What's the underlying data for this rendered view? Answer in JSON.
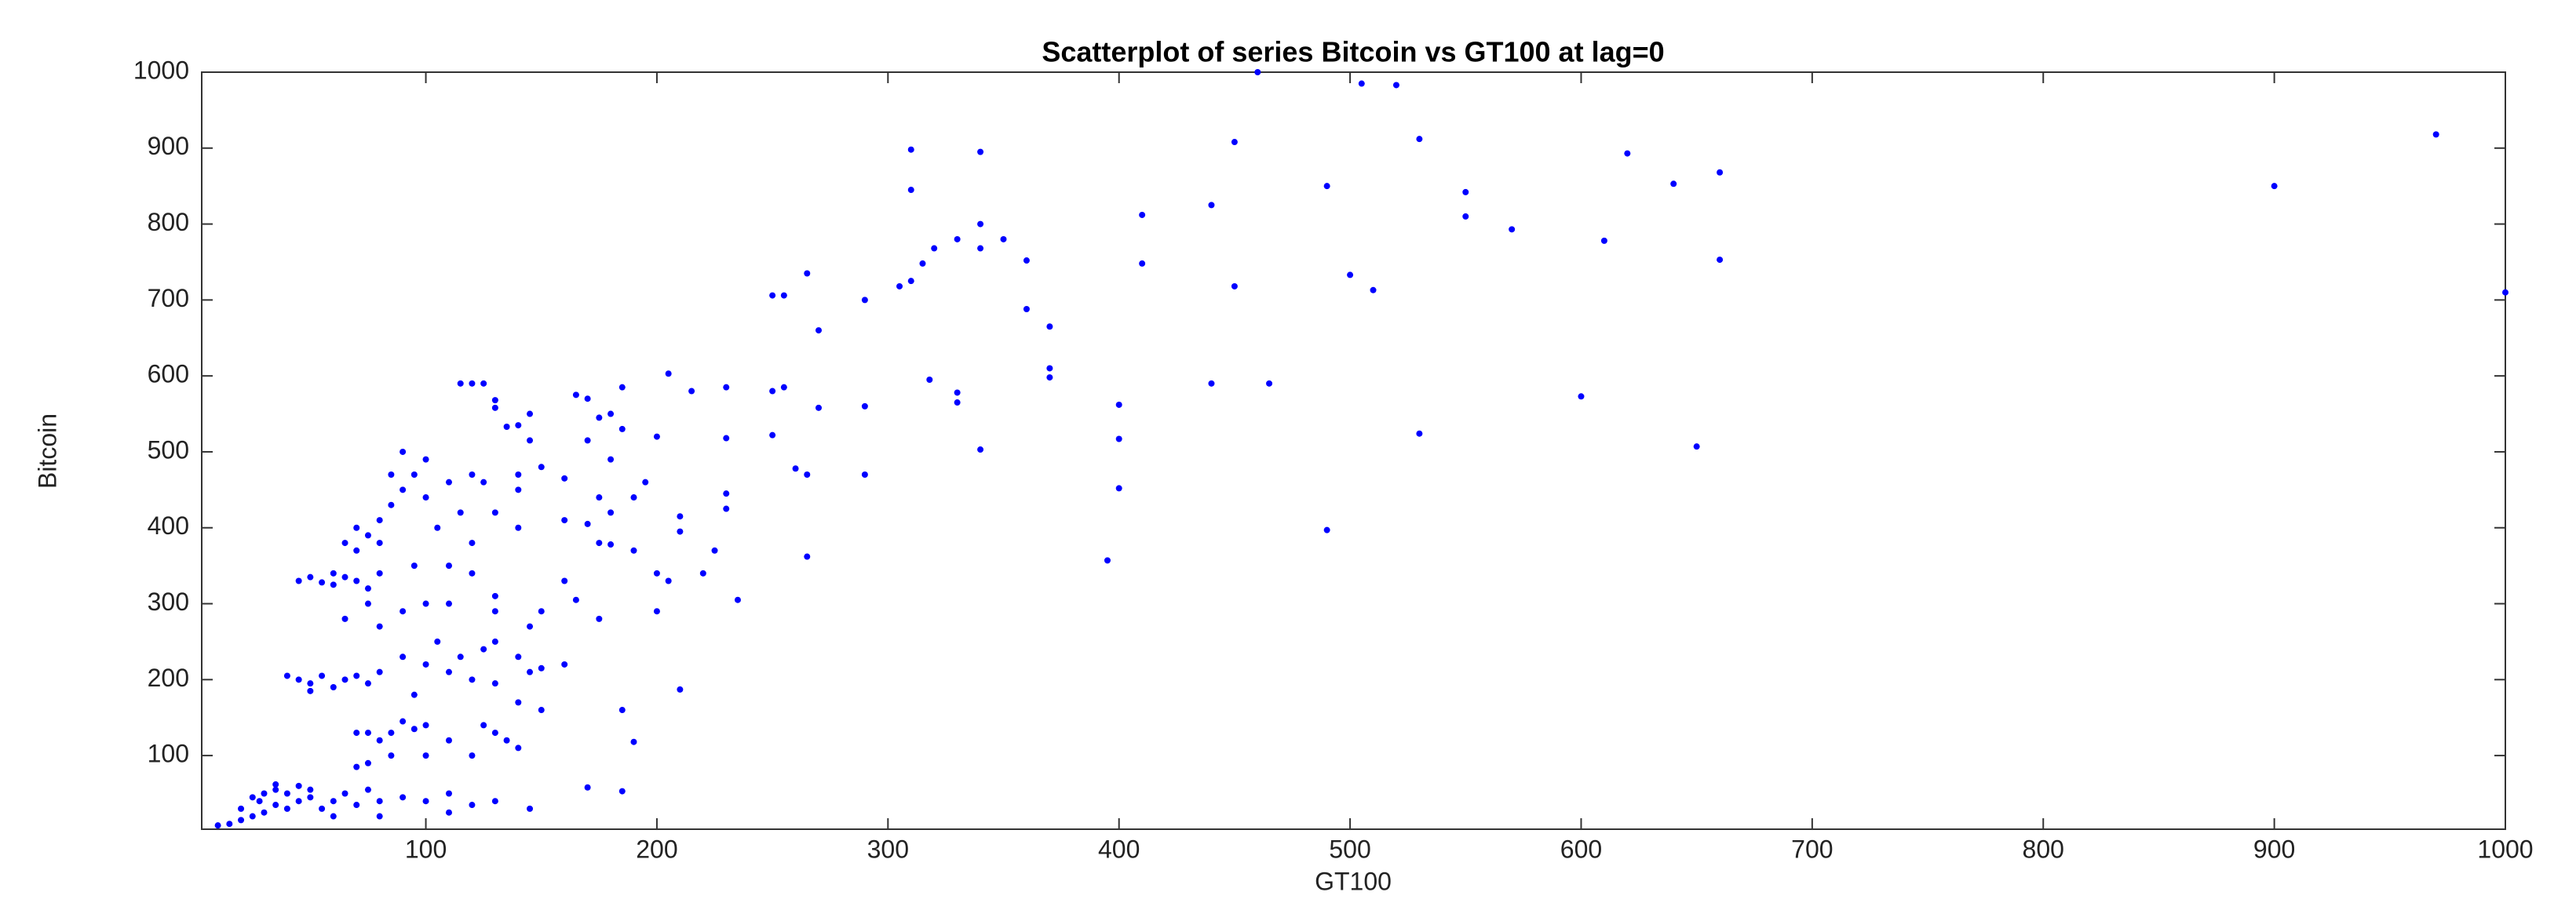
{
  "chart_data": {
    "type": "scatter",
    "title": "Scatterplot of series Bitcoin vs GT100 at lag=0",
    "x_label": "GT100",
    "y_label": "Bitcoin",
    "color": "#0000ff",
    "xlim": [
      3,
      1000
    ],
    "ylim": [
      3,
      1000
    ],
    "xticks": [
      100,
      200,
      300,
      400,
      500,
      600,
      700,
      800,
      900,
      1000
    ],
    "yticks": [
      100,
      200,
      300,
      400,
      500,
      600,
      700,
      800,
      900,
      1000
    ],
    "x": [
      460,
      505,
      520,
      970,
      530,
      310,
      340,
      450,
      620,
      660,
      640,
      490,
      900,
      550,
      310,
      550,
      410,
      440,
      340,
      570,
      330,
      350,
      320,
      340,
      610,
      360,
      660,
      410,
      315,
      265,
      500,
      305,
      310,
      450,
      510,
      1000,
      250,
      255,
      290,
      360,
      370,
      270,
      370,
      370,
      205,
      318,
      440,
      465,
      120,
      125,
      115,
      230,
      255,
      215,
      250,
      330,
      185,
      165,
      170,
      130,
      130,
      145,
      180,
      270,
      290,
      400,
      330,
      175,
      140,
      135,
      185,
      200,
      230,
      250,
      400,
      145,
      170,
      600,
      650,
      530,
      340,
      490,
      395,
      265,
      400,
      290,
      260,
      265,
      180,
      195,
      190,
      175,
      150,
      140,
      160,
      210,
      210,
      230,
      230,
      180,
      160,
      170,
      175,
      180,
      190,
      200,
      205,
      220,
      225,
      235,
      200,
      175,
      165,
      160,
      150,
      145,
      130,
      130,
      110,
      120,
      140,
      160,
      150,
      145,
      140,
      130,
      125,
      120,
      115,
      110,
      105,
      100,
      95,
      90,
      130,
      140,
      150,
      125,
      130,
      135,
      110,
      100,
      95,
      90,
      85,
      80,
      75,
      70,
      85,
      75,
      70,
      100,
      120,
      140,
      185,
      190,
      210,
      170,
      185,
      145,
      130,
      120,
      110,
      100,
      90,
      80,
      70,
      60,
      55,
      50,
      45,
      40,
      35,
      30,
      25,
      35,
      40,
      30,
      25,
      20,
      15,
      10,
      20,
      28,
      35,
      45,
      50,
      60,
      80,
      110,
      75,
      65,
      45,
      50,
      55,
      60,
      65,
      70,
      75,
      80,
      60,
      40,
      45,
      50,
      55,
      60,
      65,
      70,
      75,
      80,
      50,
      70,
      75,
      80,
      85,
      90,
      95,
      100,
      90,
      70,
      65,
      80,
      100,
      110,
      105,
      115,
      85,
      75,
      65,
      80,
      90,
      100,
      95,
      110,
      120,
      130,
      140,
      120,
      125
    ],
    "values": [
      1000,
      985,
      983,
      918,
      912,
      898,
      895,
      908,
      893,
      868,
      853,
      850,
      850,
      842,
      845,
      810,
      812,
      825,
      800,
      793,
      780,
      780,
      768,
      768,
      778,
      752,
      753,
      748,
      748,
      735,
      733,
      718,
      725,
      718,
      713,
      710,
      706,
      706,
      700,
      688,
      665,
      660,
      610,
      598,
      603,
      595,
      590,
      590,
      590,
      590,
      590,
      585,
      585,
      580,
      580,
      578,
      585,
      575,
      570,
      568,
      558,
      550,
      550,
      558,
      560,
      562,
      565,
      545,
      535,
      533,
      530,
      520,
      518,
      522,
      517,
      515,
      515,
      573,
      507,
      524,
      503,
      397,
      357,
      362,
      452,
      470,
      478,
      470,
      490,
      460,
      440,
      440,
      480,
      470,
      465,
      415,
      395,
      445,
      425,
      420,
      410,
      405,
      380,
      378,
      370,
      340,
      330,
      340,
      370,
      305,
      290,
      280,
      305,
      330,
      290,
      270,
      290,
      310,
      300,
      340,
      400,
      220,
      215,
      210,
      230,
      250,
      240,
      200,
      230,
      210,
      250,
      220,
      180,
      230,
      195,
      170,
      160,
      140,
      130,
      120,
      120,
      140,
      135,
      145,
      130,
      120,
      130,
      130,
      100,
      90,
      85,
      100,
      100,
      110,
      160,
      118,
      187,
      58,
      53,
      30,
      40,
      35,
      50,
      40,
      45,
      40,
      35,
      40,
      30,
      45,
      40,
      50,
      55,
      50,
      45,
      35,
      30,
      25,
      20,
      15,
      10,
      8,
      30,
      40,
      62,
      60,
      55,
      20,
      20,
      25,
      55,
      50,
      330,
      335,
      328,
      340,
      335,
      330,
      320,
      340,
      325,
      205,
      200,
      195,
      205,
      190,
      200,
      205,
      195,
      210,
      185,
      370,
      390,
      410,
      430,
      450,
      470,
      490,
      500,
      400,
      380,
      380,
      440,
      460,
      400,
      420,
      470,
      300,
      280,
      270,
      290,
      300,
      350,
      350,
      380,
      420,
      450,
      470,
      460
    ]
  }
}
